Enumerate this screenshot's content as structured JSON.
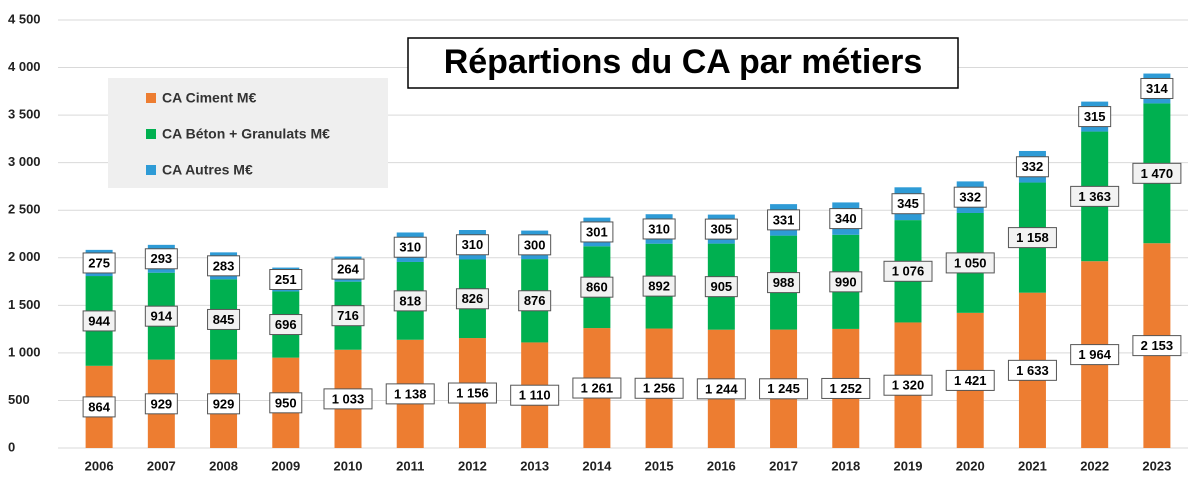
{
  "chart_data": {
    "type": "stacked_bar",
    "title": "Répartions du CA par métiers",
    "categories": [
      "2006",
      "2007",
      "2008",
      "2009",
      "2010",
      "2011",
      "2012",
      "2013",
      "2014",
      "2015",
      "2016",
      "2017",
      "2018",
      "2019",
      "2020",
      "2021",
      "2022",
      "2023"
    ],
    "series": [
      {
        "name": "CA Ciment M€",
        "color": "#ED7D31",
        "values": [
          864,
          929,
          929,
          950,
          1033,
          1138,
          1156,
          1110,
          1261,
          1256,
          1244,
          1245,
          1252,
          1320,
          1421,
          1633,
          1964,
          2153
        ],
        "value_labels": [
          "864",
          "929",
          "929",
          "950",
          "1 033",
          "1 138",
          "1 156",
          "1 110",
          "1 261",
          "1 256",
          "1 244",
          "1 245",
          "1 252",
          "1 320",
          "1 421",
          "1 633",
          "1 964",
          "2 153"
        ]
      },
      {
        "name": "CA Béton + Granulats M€",
        "color": "#00B050",
        "values": [
          944,
          914,
          845,
          696,
          716,
          818,
          826,
          876,
          860,
          892,
          905,
          988,
          990,
          1076,
          1050,
          1158,
          1363,
          1470
        ],
        "value_labels": [
          "944",
          "914",
          "845",
          "696",
          "716",
          "818",
          "826",
          "876",
          "860",
          "892",
          "905",
          "988",
          "990",
          "1 076",
          "1 050",
          "1 158",
          "1 363",
          "1 470"
        ]
      },
      {
        "name": "CA Autres M€",
        "color": "#2E9BD6",
        "values": [
          275,
          293,
          283,
          251,
          264,
          310,
          310,
          300,
          301,
          310,
          305,
          331,
          340,
          345,
          332,
          332,
          315,
          314
        ],
        "value_labels": [
          "275",
          "293",
          "283",
          "251",
          "264",
          "310",
          "310",
          "300",
          "301",
          "310",
          "305",
          "331",
          "340",
          "345",
          "332",
          "332",
          "315",
          "314"
        ]
      }
    ],
    "ylim": [
      0,
      4500
    ],
    "yticks": [
      0,
      500,
      {
        "value": 1000,
        "label": "1 000"
      },
      {
        "value": 1500,
        "label": "1 500"
      },
      {
        "value": 2000,
        "label": "2 000"
      },
      {
        "value": 2500,
        "label": "2 500"
      },
      {
        "value": 3000,
        "label": "3 000"
      },
      {
        "value": 3500,
        "label": "3 500"
      },
      {
        "value": 4000,
        "label": "4 000"
      },
      {
        "value": 4500,
        "label": "4 500"
      }
    ],
    "grid": true
  }
}
